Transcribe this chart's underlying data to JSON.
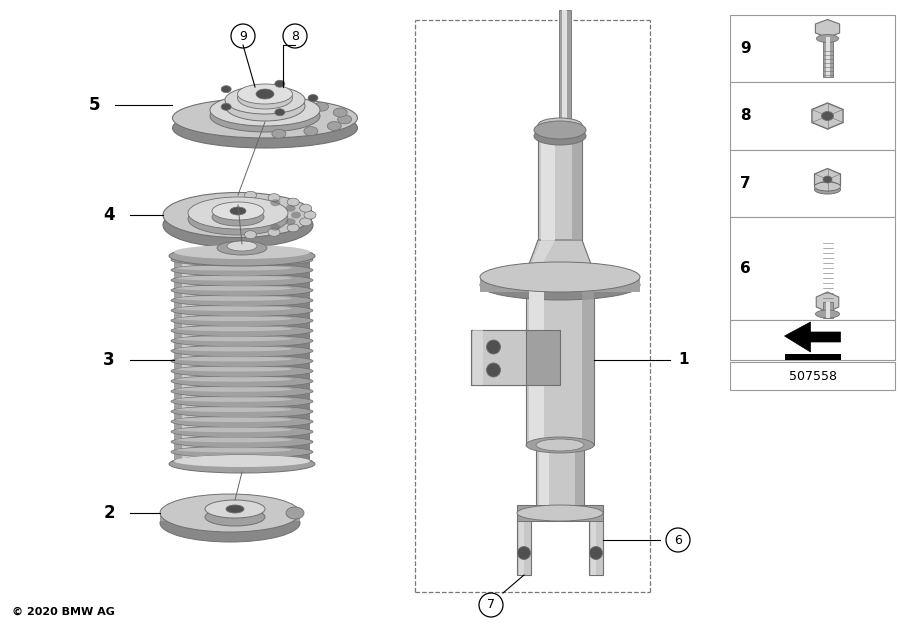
{
  "copyright": "© 2020 BMW AG",
  "part_number": "507558",
  "bg": "#ffffff",
  "lc": "#000000",
  "c_light": "#c8c8c8",
  "c_mid": "#a0a0a0",
  "c_dark": "#707070",
  "c_shadow": "#888888",
  "c_highlight": "#e0e0e0",
  "c_vlight": "#d8d8d8"
}
